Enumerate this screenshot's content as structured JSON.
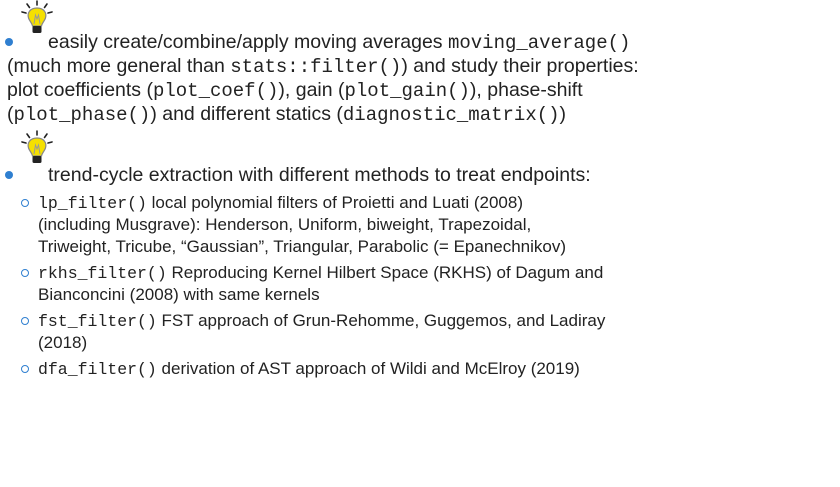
{
  "items": [
    {
      "lines": [
        [
          {
            "text": "easily create/combine/apply moving averages "
          },
          {
            "mono": "moving_average()"
          }
        ],
        [
          {
            "text": "(much more general than "
          },
          {
            "mono": "stats::filter()"
          },
          {
            "text": ") and study their properties:"
          }
        ],
        [
          {
            "text": "plot coefficients ("
          },
          {
            "mono": "plot_coef()"
          },
          {
            "text": "), gain ("
          },
          {
            "mono": "plot_gain()"
          },
          {
            "text": "), phase-shift"
          }
        ],
        [
          {
            "text": "("
          },
          {
            "mono": "plot_phase()"
          },
          {
            "text": ") and different statics ("
          },
          {
            "mono": "diagnostic_matrix()"
          },
          {
            "text": ")"
          }
        ]
      ]
    },
    {
      "lines": [
        [
          {
            "text": "trend-cycle extraction with different methods to treat endpoints:"
          }
        ]
      ],
      "subitems": [
        {
          "lines": [
            [
              {
                "mono": "lp_filter()"
              },
              {
                "text": " local polynomial filters of Proietti and Luati (2008)"
              }
            ],
            [
              {
                "text": "(including Musgrave): Henderson, Uniform, biweight, Trapezoidal,"
              }
            ],
            [
              {
                "text": "Triweight, Tricube, “Gaussian”, Triangular, Parabolic (= Epanechnikov)"
              }
            ]
          ]
        },
        {
          "lines": [
            [
              {
                "mono": "rkhs_filter()"
              },
              {
                "text": " Reproducing Kernel Hilbert Space (RKHS) of Dagum and"
              }
            ],
            [
              {
                "text": "Bianconcini (2008) with same kernels"
              }
            ]
          ]
        },
        {
          "lines": [
            [
              {
                "mono": "fst_filter()"
              },
              {
                "text": " FST approach of Grun-Rehomme, Guggemos, and Ladiray"
              }
            ],
            [
              {
                "text": "(2018)"
              }
            ]
          ]
        },
        {
          "lines": [
            [
              {
                "mono": "dfa_filter()"
              },
              {
                "text": " derivation of AST approach of Wildi and McElroy (2019)"
              }
            ]
          ]
        }
      ]
    }
  ]
}
